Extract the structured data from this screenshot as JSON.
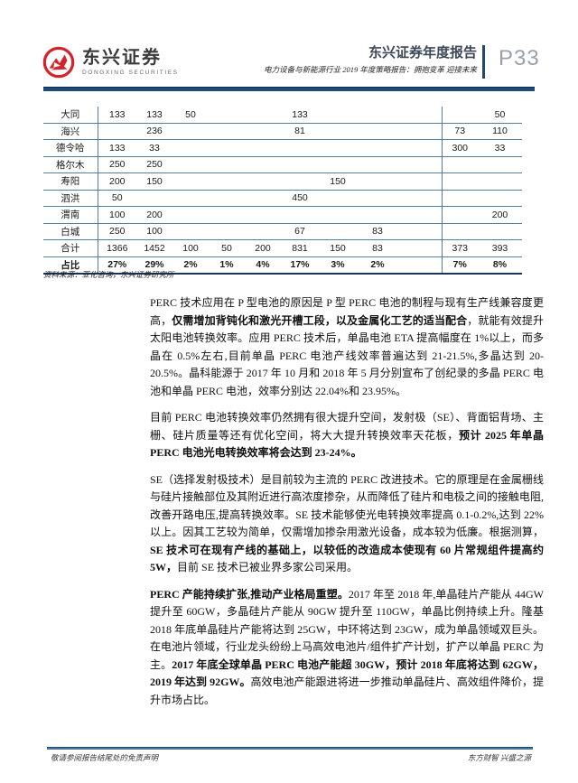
{
  "colors": {
    "brand_red": "#d6232b",
    "rule_navy": "#1d4a7a",
    "table_line_blue": "#557ca3",
    "table_bottom_navy": "#16365c",
    "title_slate": "#3d4856",
    "page_label_gray": "#98a1ab"
  },
  "header": {
    "logo_cn": "东兴证券",
    "logo_en": "DONGXING SECURITIES",
    "report_title": "东兴证券年度报告",
    "report_subtitle": "电力设备与新能源行业 2019 年度策略报告：拥抱变革 迎接未来",
    "page_label": "P33"
  },
  "table": {
    "rows": [
      {
        "label": "大同",
        "bold": false,
        "values": [
          "133",
          "133",
          "50",
          "",
          "",
          "133",
          "",
          "",
          "",
          "50"
        ]
      },
      {
        "label": "海兴",
        "bold": false,
        "values": [
          "",
          "236",
          "",
          "",
          "",
          "81",
          "",
          "",
          "73",
          "110"
        ]
      },
      {
        "label": "德令哈",
        "bold": false,
        "values": [
          "133",
          "33",
          "",
          "",
          "",
          "",
          "",
          "",
          "300",
          "33"
        ]
      },
      {
        "label": "格尔木",
        "bold": false,
        "values": [
          "250",
          "250",
          "",
          "",
          "",
          "",
          "",
          "",
          "",
          ""
        ]
      },
      {
        "label": "寿阳",
        "bold": false,
        "values": [
          "200",
          "150",
          "",
          "",
          "",
          "",
          "150",
          "",
          "",
          ""
        ]
      },
      {
        "label": "泗洪",
        "bold": false,
        "values": [
          "50",
          "",
          "",
          "",
          "",
          "450",
          "",
          "",
          "",
          ""
        ]
      },
      {
        "label": "渭南",
        "bold": false,
        "values": [
          "100",
          "200",
          "",
          "",
          "",
          "",
          "",
          "",
          "",
          "200"
        ]
      },
      {
        "label": "白城",
        "bold": false,
        "values": [
          "250",
          "100",
          "",
          "",
          "",
          "67",
          "",
          "83",
          "",
          ""
        ]
      },
      {
        "label": "合计",
        "bold": false,
        "values": [
          "1366",
          "1452",
          "100",
          "50",
          "200",
          "831",
          "150",
          "83",
          "373",
          "393"
        ]
      },
      {
        "label": "占比",
        "bold": true,
        "values": [
          "27%",
          "29%",
          "2%",
          "1%",
          "4%",
          "17%",
          "3%",
          "2%",
          "7%",
          "8%"
        ]
      }
    ],
    "source_note": "资料来源：亚化咨询，东兴证券研究所"
  },
  "body": {
    "paragraphs": [
      {
        "runs": [
          {
            "t": "PERC 技术应用在 P 型电池的原因是 P 型 PERC 电池的制程与现有生产线兼容度更高，",
            "b": false
          },
          {
            "t": "仅需增加背钝化和激光开槽工段，以及金属化工艺的适当配合",
            "b": true
          },
          {
            "t": "，就能有效提升太阳电池转换效率。应用 PERC 技术后，单晶电池 ETA 提高幅度在 1%以上，而多晶在 0.5%左右,目前单晶 PERC 电池产线效率普遍达到 21-21.5%,多晶达到 20-20.5%。晶科能源于 2017 年 10 月和 2018 年 5 月分别宣布了创纪录的多晶 PERC 电池和单晶 PERC 电池，效率分别达 22.04%和 23.95%。",
            "b": false
          }
        ]
      },
      {
        "runs": [
          {
            "t": "目前 PERC 电池转换效率仍然拥有很大提升空间，发射极（SE）、背面铝背场、主栅、硅片质量等还有优化空间，将大大提升转换效率天花板，",
            "b": false
          },
          {
            "t": "预计 2025 年单晶 PERC 电池光电转换效率将会达到 23-24%。",
            "b": true
          }
        ]
      },
      {
        "runs": [
          {
            "t": "SE（选择发射极技术）是目前较为主流的 PERC 改进技术。它的原理是在金属栅线与硅片接触部位及其附近进行高浓度掺杂，从而降低了硅片和电极之间的接触电阻,改善开路电压,提高转换效率。SE 技术能够使光电转换效率提高 0.1-0.2%,达到 22%以上。因其工艺较为简单，仅需增加掺杂用激光设备，成本较为低廉。根据测算，",
            "b": false
          },
          {
            "t": "SE 技术可在现有产线的基础上，以较低的改造成本使现有 60 片常规组件提高约 5W，",
            "b": true
          },
          {
            "t": "目前 SE 技术已被业界多家公司采用。",
            "b": false
          }
        ]
      },
      {
        "runs": [
          {
            "t": "PERC 产能持续扩张,推动产业格局重塑。",
            "b": true
          },
          {
            "t": "2017 年至 2018 年,单晶硅片产能从 44GW 提升至 60GW，多晶硅片产能从 90GW 提升至 110GW，单晶比例持续上升。隆基 2018 年底单晶硅片产能将达到 25GW，中环将达到 23GW，成为单晶领域双巨头。在电池片领域，行业龙头纷纷上马高效电池片/组件扩产计划，扩产以单晶 PERC 为主。",
            "b": false
          },
          {
            "t": "2017 年底全球单晶 PERC 电池产能超 30GW，预计 2018 年底将达到 62GW，2019 年达到 92GW。",
            "b": true
          },
          {
            "t": "高效电池产能跟进将进一步推动单晶硅片、高效组件降价，提升市场占比。",
            "b": false
          }
        ]
      }
    ]
  },
  "footer": {
    "left": "敬请参阅报告结尾处的免责声明",
    "right": "东方财智 兴盛之源"
  }
}
